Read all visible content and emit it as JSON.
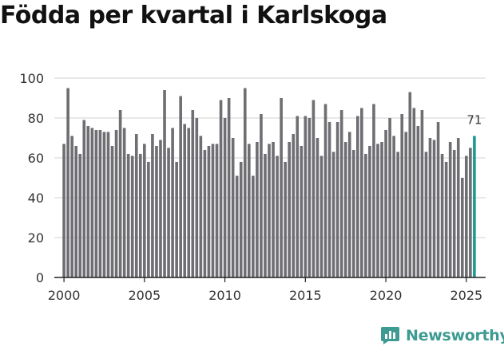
{
  "title": "Födda per kvartal i Karlskoga",
  "brand": {
    "name": "Newsworthy",
    "color": "#3d9b93"
  },
  "colors": {
    "bar": "#6f6e73",
    "highlight": "#1e9a94",
    "grid": "#d9d9d9",
    "axis": "#222222",
    "text": "#333333"
  },
  "chart_data": {
    "type": "bar",
    "title": "Födda per kvartal i Karlskoga",
    "xlabel": "",
    "ylabel": "",
    "ylim": [
      0,
      100
    ],
    "yticks": [
      0,
      20,
      40,
      60,
      80,
      100
    ],
    "xticks": [
      2000,
      2005,
      2010,
      2015,
      2020,
      2025
    ],
    "xlim": [
      1999.4,
      2026.2
    ],
    "grid": true,
    "start": {
      "year": 2000,
      "quarter": 1
    },
    "values": [
      67,
      95,
      71,
      66,
      62,
      79,
      76,
      75,
      74,
      74,
      73,
      73,
      66,
      74,
      84,
      75,
      62,
      61,
      72,
      62,
      67,
      58,
      72,
      66,
      69,
      94,
      65,
      75,
      58,
      91,
      77,
      75,
      84,
      80,
      71,
      64,
      66,
      67,
      67,
      89,
      80,
      90,
      70,
      51,
      58,
      95,
      67,
      51,
      68,
      82,
      62,
      67,
      68,
      61,
      90,
      58,
      68,
      72,
      81,
      66,
      81,
      80,
      89,
      70,
      61,
      87,
      78,
      63,
      78,
      84,
      68,
      73,
      64,
      81,
      85,
      62,
      66,
      87,
      67,
      68,
      74,
      80,
      71,
      63,
      82,
      73,
      93,
      85,
      76,
      84,
      63,
      70,
      69,
      78,
      62,
      58,
      68,
      64,
      70,
      50,
      61,
      65,
      71
    ],
    "highlight": {
      "value": 71,
      "label": "71"
    }
  }
}
